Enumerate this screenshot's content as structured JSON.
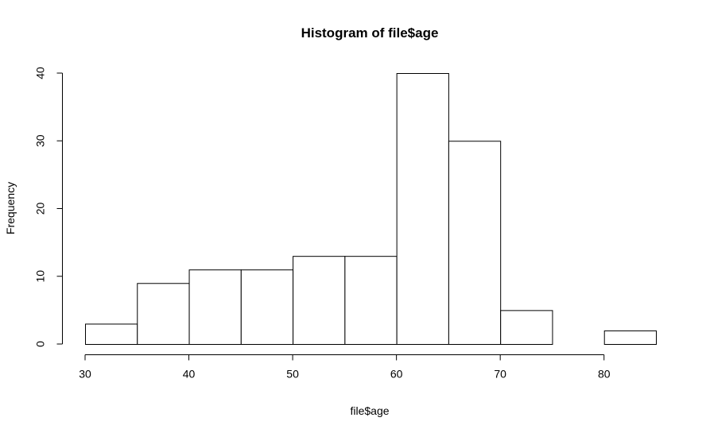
{
  "chart_data": {
    "type": "bar",
    "subtype": "histogram",
    "title": "Histogram of file$age",
    "xlabel": "file$age",
    "ylabel": "Frequency",
    "bins": [
      {
        "start": 30,
        "end": 35,
        "count": 3
      },
      {
        "start": 35,
        "end": 40,
        "count": 9
      },
      {
        "start": 40,
        "end": 45,
        "count": 11
      },
      {
        "start": 45,
        "end": 50,
        "count": 11
      },
      {
        "start": 50,
        "end": 55,
        "count": 13
      },
      {
        "start": 55,
        "end": 60,
        "count": 13
      },
      {
        "start": 60,
        "end": 65,
        "count": 40
      },
      {
        "start": 65,
        "end": 70,
        "count": 30
      },
      {
        "start": 70,
        "end": 75,
        "count": 5
      },
      {
        "start": 75,
        "end": 80,
        "count": 0
      },
      {
        "start": 80,
        "end": 85,
        "count": 2
      }
    ],
    "xlim": [
      30,
      85
    ],
    "ylim": [
      0,
      40
    ],
    "x_ticks": [
      30,
      40,
      50,
      60,
      70,
      80
    ],
    "y_ticks": [
      0,
      10,
      20,
      30,
      40
    ],
    "x_tick_labels": [
      "30",
      "40",
      "50",
      "60",
      "70",
      "80"
    ],
    "y_tick_labels": [
      "0",
      "10",
      "20",
      "30",
      "40"
    ],
    "grid": false,
    "legend": "none",
    "bar_fill": "#ffffff",
    "bar_stroke": "#000000"
  }
}
